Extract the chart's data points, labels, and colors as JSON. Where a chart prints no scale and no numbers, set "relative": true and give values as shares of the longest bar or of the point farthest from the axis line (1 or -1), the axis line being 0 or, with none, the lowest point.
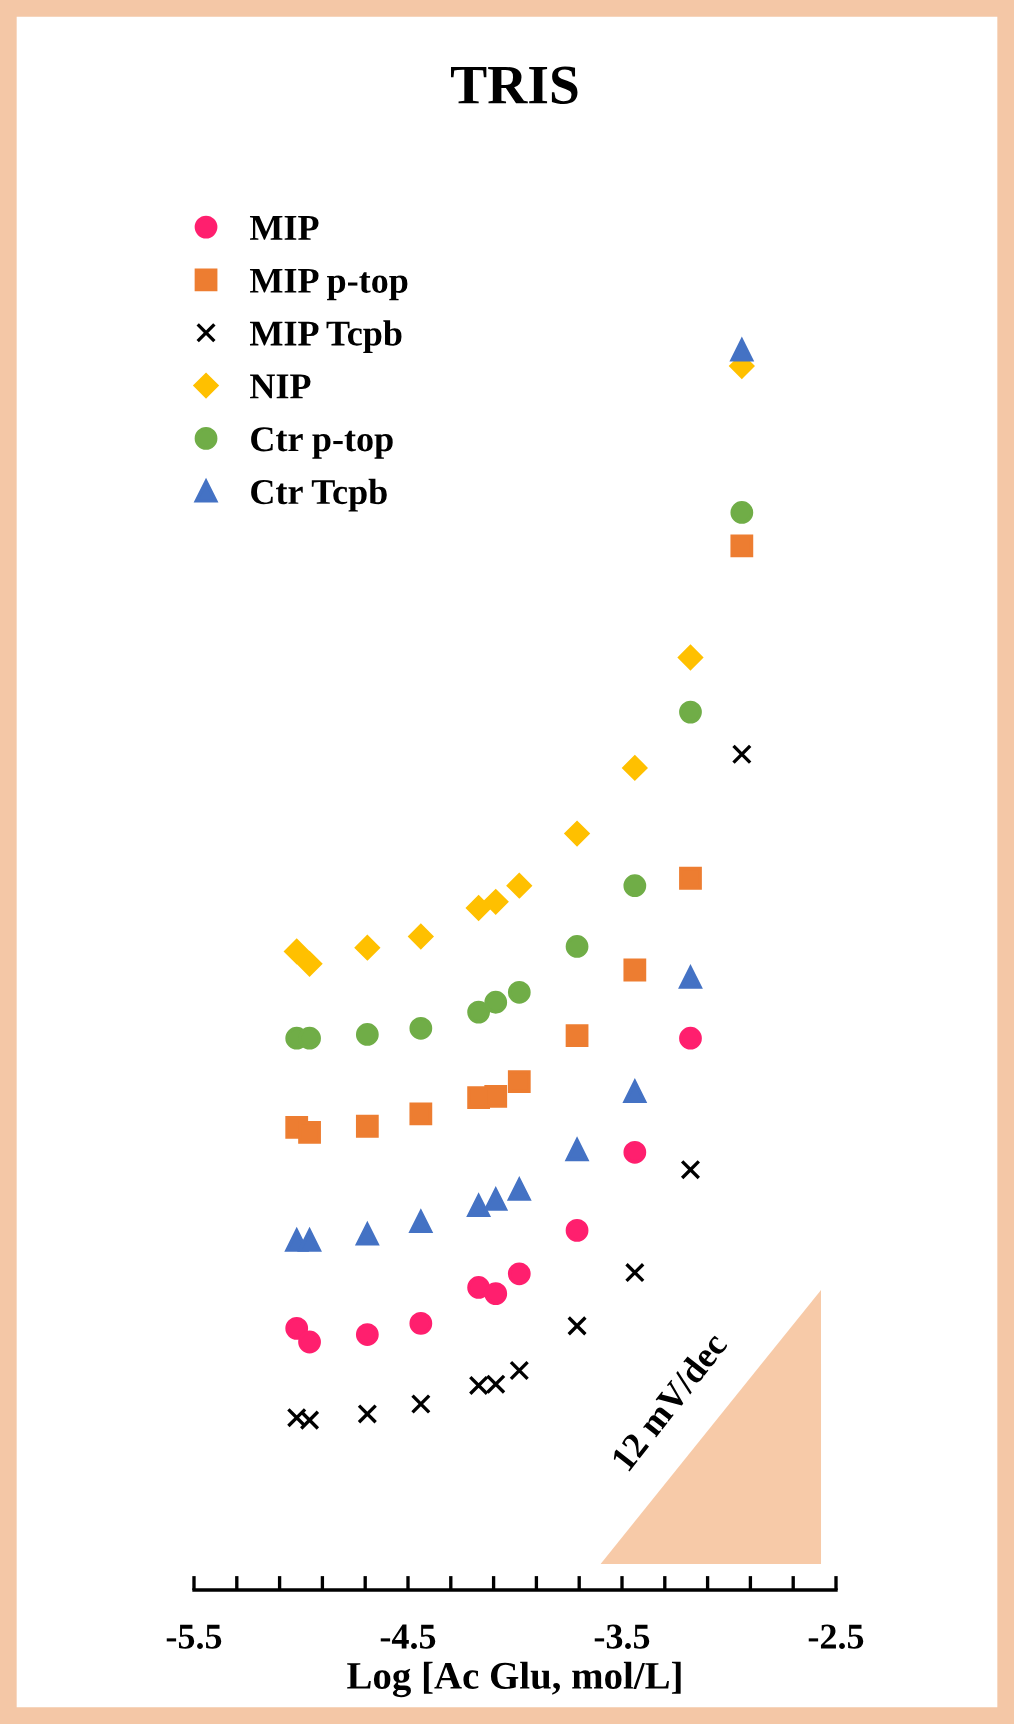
{
  "chart_data": {
    "type": "scatter",
    "title": "TRIS",
    "xlabel": "Log [Ac Glu, mol/L]",
    "relative": true,
    "legend": "top left",
    "grid": false,
    "tick_labels": "x",
    "x": [
      -5.02,
      -4.96,
      -4.69,
      -4.44,
      -4.17,
      -4.09,
      -3.98,
      -3.71,
      -3.44,
      -3.18,
      -2.94
    ],
    "xlim": [
      -5.5,
      -2.5
    ],
    "xticks": [
      -5.5,
      {
        "value": -5.3,
        "label": null
      },
      {
        "value": -5.1,
        "label": null
      },
      {
        "value": -4.9,
        "label": null
      },
      {
        "value": -4.7,
        "label": null
      },
      -4.5,
      {
        "value": -4.3,
        "label": null
      },
      {
        "value": -4.1,
        "label": null
      },
      {
        "value": -3.9,
        "label": null
      },
      {
        "value": -3.7,
        "label": null
      },
      -3.5,
      {
        "value": -3.3,
        "label": null
      },
      {
        "value": -3.1,
        "label": null
      },
      {
        "value": -2.9,
        "label": null
      },
      {
        "value": -2.7,
        "label": null
      },
      -2.5
    ],
    "annotations": [
      "12 mV/dec"
    ],
    "series": [
      {
        "name": "MIP",
        "color": "#ff1f6e",
        "marker": "circle",
        "values": [
          0.211,
          0.2,
          0.206,
          0.215,
          0.244,
          0.239,
          0.255,
          0.29,
          0.353,
          0.445,
          null
        ]
      },
      {
        "name": "MIP p-top",
        "color": "#ed7d31",
        "marker": "square",
        "values": [
          0.373,
          0.369,
          0.374,
          0.384,
          0.397,
          0.398,
          0.41,
          0.447,
          0.5,
          0.574,
          0.842
        ]
      },
      {
        "name": "MIP Tcpb",
        "color": "#000000",
        "marker": "cross",
        "values": [
          0.139,
          0.137,
          0.142,
          0.15,
          0.165,
          0.166,
          0.177,
          0.213,
          0.256,
          0.339,
          0.674
        ]
      },
      {
        "name": "NIP",
        "color": "#ffc000",
        "marker": "diamond",
        "values": [
          0.515,
          0.505,
          0.518,
          0.527,
          0.55,
          0.555,
          0.568,
          0.61,
          0.663,
          0.752,
          0.987
        ]
      },
      {
        "name": "Ctr p-top",
        "color": "#70ad47",
        "marker": "circle",
        "values": [
          0.445,
          0.445,
          0.448,
          0.453,
          0.466,
          0.474,
          0.482,
          0.519,
          0.568,
          0.708,
          0.869
        ]
      },
      {
        "name": "Ctr Tcpb",
        "color": "#4472c4",
        "marker": "triangle",
        "values": [
          0.282,
          0.282,
          0.287,
          0.297,
          0.31,
          0.315,
          0.323,
          0.355,
          0.402,
          0.494,
          1
        ]
      }
    ]
  }
}
